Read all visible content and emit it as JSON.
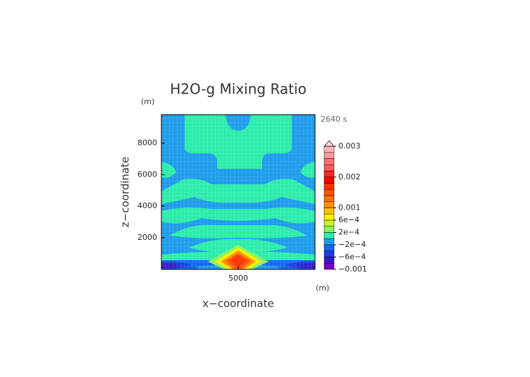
{
  "chart_data": {
    "type": "contour",
    "title": "H2O-g Mixing Ratio",
    "xlabel": "x−coordinate",
    "ylabel": "z−coordinate",
    "x_unit": "(m)",
    "y_unit": "(m)",
    "time_label": "2640 s",
    "xlim": [
      0,
      10000
    ],
    "ylim": [
      0,
      9800
    ],
    "xticks": [
      5000
    ],
    "yticks": [
      2000,
      4000,
      6000,
      8000
    ],
    "colorbar": {
      "levels": [
        -0.001,
        -0.0008,
        -0.0006,
        -0.0004,
        -0.0002,
        0,
        0.0002,
        0.0004,
        0.0006,
        0.0008,
        0.001,
        0.0012,
        0.0014,
        0.0016,
        0.0018,
        0.002,
        0.0022,
        0.0024,
        0.0026,
        0.0028,
        0.003
      ],
      "colors": [
        "#7a00c4",
        "#3a18c8",
        "#1e3cdc",
        "#1766ee",
        "#1e9cec",
        "#2cecaa",
        "#8cf05a",
        "#ccf02a",
        "#fff000",
        "#ffc000",
        "#ff9000",
        "#ff7000",
        "#ff5200",
        "#ff3000",
        "#ff0000",
        "#f02828",
        "#ff5a5a",
        "#ff7070",
        "#ff9898",
        "#ffb6b6"
      ],
      "extend_color": "#ffd4d4",
      "ticks": [
        {
          "value": -0.001,
          "label": "−0.001"
        },
        {
          "value": -0.0006,
          "label": "−6e−4"
        },
        {
          "value": -0.0002,
          "label": "−2e−4"
        },
        {
          "value": 0.0002,
          "label": "2e−4"
        },
        {
          "value": 0.0006,
          "label": "6e−4"
        },
        {
          "value": 0.001,
          "label": "0.001"
        },
        {
          "value": 0.002,
          "label": "0.002"
        },
        {
          "value": 0.003,
          "label": "0.003"
        }
      ]
    }
  }
}
